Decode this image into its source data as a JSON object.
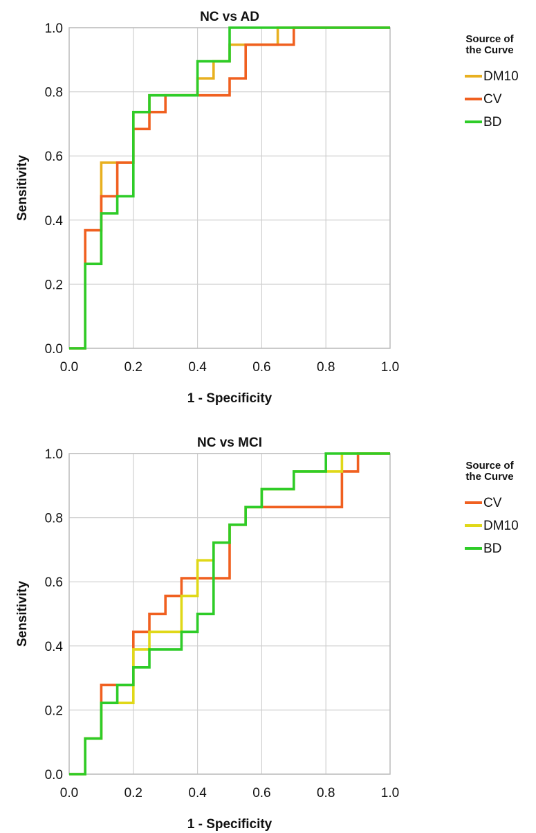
{
  "chart_data": [
    {
      "type": "line",
      "title": "NC vs AD",
      "xlabel": "1 - Specificity",
      "ylabel": "Sensitivity",
      "xlim": [
        0,
        1
      ],
      "ylim": [
        0,
        1
      ],
      "xticks": [
        "0.0",
        "0.2",
        "0.4",
        "0.6",
        "0.8",
        "1.0"
      ],
      "yticks": [
        "0.0",
        "0.2",
        "0.4",
        "0.6",
        "0.8",
        "1.0"
      ],
      "grid": true,
      "legend": {
        "title_lines": [
          "Source of",
          "the Curve"
        ],
        "placement": "right"
      },
      "series": [
        {
          "name": "DM10",
          "color": "#E8B020",
          "x": [
            0,
            0.05,
            0.05,
            0.1,
            0.1,
            0.15,
            0.15,
            0.2,
            0.2,
            0.25,
            0.25,
            0.4,
            0.4,
            0.45,
            0.45,
            0.5,
            0.5,
            0.65,
            0.65,
            1.0
          ],
          "y": [
            0,
            0,
            0.263,
            0.263,
            0.579,
            0.579,
            0.579,
            0.579,
            0.737,
            0.737,
            0.789,
            0.789,
            0.842,
            0.842,
            0.895,
            0.895,
            0.947,
            0.947,
            1.0,
            1.0
          ]
        },
        {
          "name": "CV",
          "color": "#F06020",
          "x": [
            0,
            0.05,
            0.05,
            0.1,
            0.1,
            0.15,
            0.15,
            0.2,
            0.2,
            0.25,
            0.25,
            0.3,
            0.3,
            0.5,
            0.5,
            0.55,
            0.55,
            0.7,
            0.7,
            1.0
          ],
          "y": [
            0,
            0,
            0.368,
            0.368,
            0.474,
            0.474,
            0.579,
            0.579,
            0.684,
            0.684,
            0.737,
            0.737,
            0.789,
            0.789,
            0.842,
            0.842,
            0.947,
            0.947,
            1.0,
            1.0
          ]
        },
        {
          "name": "BD",
          "color": "#2ECC28",
          "x": [
            0,
            0.05,
            0.05,
            0.1,
            0.1,
            0.15,
            0.15,
            0.2,
            0.2,
            0.25,
            0.25,
            0.4,
            0.4,
            0.5,
            0.5,
            1.0
          ],
          "y": [
            0,
            0,
            0.263,
            0.263,
            0.421,
            0.421,
            0.474,
            0.474,
            0.737,
            0.737,
            0.789,
            0.789,
            0.895,
            0.895,
            1.0,
            1.0
          ]
        }
      ]
    },
    {
      "type": "line",
      "title": "NC vs MCI",
      "xlabel": "1 - Specificity",
      "ylabel": "Sensitivity",
      "xlim": [
        0,
        1
      ],
      "ylim": [
        0,
        1
      ],
      "xticks": [
        "0.0",
        "0.2",
        "0.4",
        "0.6",
        "0.8",
        "1.0"
      ],
      "yticks": [
        "0.0",
        "0.2",
        "0.4",
        "0.6",
        "0.8",
        "1.0"
      ],
      "grid": true,
      "legend": {
        "title_lines": [
          "Source of",
          "the Curve"
        ],
        "placement": "right"
      },
      "series": [
        {
          "name": "CV",
          "color": "#F06020",
          "x": [
            0,
            0.05,
            0.05,
            0.1,
            0.1,
            0.2,
            0.2,
            0.25,
            0.25,
            0.3,
            0.3,
            0.35,
            0.35,
            0.5,
            0.5,
            0.55,
            0.55,
            0.6,
            0.6,
            0.85,
            0.85,
            0.9,
            0.9,
            1.0
          ],
          "y": [
            0,
            0,
            0.111,
            0.111,
            0.278,
            0.278,
            0.444,
            0.444,
            0.5,
            0.5,
            0.556,
            0.556,
            0.611,
            0.611,
            0.778,
            0.778,
            0.833,
            0.833,
            0.833,
            0.833,
            0.944,
            0.944,
            1.0,
            1.0
          ]
        },
        {
          "name": "DM10",
          "color": "#E0D818",
          "x": [
            0,
            0.05,
            0.05,
            0.1,
            0.1,
            0.15,
            0.15,
            0.2,
            0.2,
            0.25,
            0.25,
            0.35,
            0.35,
            0.4,
            0.4,
            0.45,
            0.45,
            0.5,
            0.5,
            0.55,
            0.55,
            0.6,
            0.6,
            0.7,
            0.7,
            0.8,
            0.8,
            0.85,
            0.85,
            1.0
          ],
          "y": [
            0,
            0,
            0.111,
            0.111,
            0.222,
            0.222,
            0.222,
            0.222,
            0.389,
            0.389,
            0.444,
            0.444,
            0.556,
            0.556,
            0.667,
            0.667,
            0.722,
            0.722,
            0.778,
            0.778,
            0.833,
            0.833,
            0.889,
            0.889,
            0.944,
            0.944,
            0.944,
            0.944,
            1.0,
            1.0
          ]
        },
        {
          "name": "BD",
          "color": "#2ECC28",
          "x": [
            0,
            0.05,
            0.05,
            0.1,
            0.1,
            0.15,
            0.15,
            0.2,
            0.2,
            0.25,
            0.25,
            0.35,
            0.35,
            0.4,
            0.4,
            0.45,
            0.45,
            0.5,
            0.5,
            0.55,
            0.55,
            0.6,
            0.6,
            0.7,
            0.7,
            0.8,
            0.8,
            1.0
          ],
          "y": [
            0,
            0,
            0.111,
            0.111,
            0.222,
            0.222,
            0.278,
            0.278,
            0.333,
            0.333,
            0.389,
            0.389,
            0.444,
            0.444,
            0.5,
            0.5,
            0.722,
            0.722,
            0.778,
            0.778,
            0.833,
            0.833,
            0.889,
            0.889,
            0.944,
            0.944,
            1.0,
            1.0
          ]
        }
      ]
    }
  ]
}
